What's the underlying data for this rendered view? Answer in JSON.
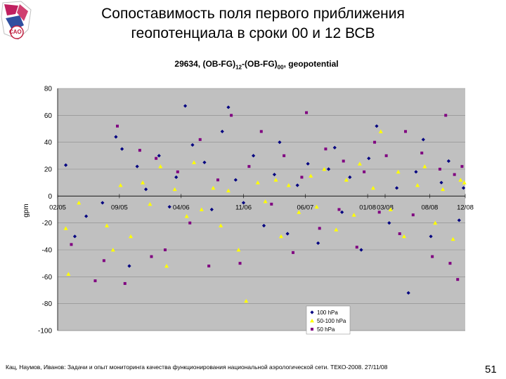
{
  "slide": {
    "title_line1": "Сопоставимость поля первого приближения",
    "title_line2": "геопотенциала в сроки 00 и 12 ВСВ",
    "logo_text": "CAO",
    "footer": "Кац, Наумов, Иванов: Задачи и опыт мониторинга качества функционирования национальной аэрологической сети. ТЕКО-2008. 27/11/08",
    "page_number": "51"
  },
  "colors": {
    "plot_bg": "#c0c0c0",
    "series_100": "#000080",
    "series_50_100": "#ffff00",
    "series_50": "#800080"
  },
  "chart_data": {
    "type": "scatter",
    "title_parts": [
      "29634, (OB-FG)",
      "12",
      "-(OB-FG)",
      "00",
      ", geopotential"
    ],
    "xlabel": "",
    "ylabel": "gpm",
    "ylim": [
      -100,
      80
    ],
    "yticks": [
      80,
      60,
      40,
      20,
      0,
      -20,
      -40,
      -60,
      -80,
      -100
    ],
    "xlim": [
      "2005-02-01",
      "2008-12-01"
    ],
    "xtick_labels": [
      "02/05",
      "09/05",
      "04/06",
      "11/06",
      "06/07",
      "01/08",
      "08/08",
      "03/08",
      "12/08"
    ],
    "xticks": [
      "2005-02-01",
      "2005-09-01",
      "2006-04-01",
      "2006-11-01",
      "2007-06-01",
      "2008-01-01",
      "2008-08-01",
      "2008-03-01",
      "2008-12-01"
    ],
    "grid": "horizontal",
    "legend_position": "bottom-right",
    "series": [
      {
        "name": "100 hPa",
        "marker": "diamond",
        "points": [
          [
            "2005-03-01",
            23
          ],
          [
            "2005-04-01",
            -30
          ],
          [
            "2005-05-10",
            -15
          ],
          [
            "2005-07-05",
            -5
          ],
          [
            "2005-08-20",
            44
          ],
          [
            "2005-09-10",
            35
          ],
          [
            "2005-10-05",
            -52
          ],
          [
            "2005-11-01",
            22
          ],
          [
            "2005-12-01",
            5
          ],
          [
            "2006-01-15",
            30
          ],
          [
            "2006-02-20",
            -8
          ],
          [
            "2006-03-15",
            14
          ],
          [
            "2006-04-15",
            67
          ],
          [
            "2006-05-10",
            38
          ],
          [
            "2006-06-20",
            25
          ],
          [
            "2006-07-15",
            -10
          ],
          [
            "2006-08-20",
            48
          ],
          [
            "2006-09-10",
            66
          ],
          [
            "2006-10-05",
            12
          ],
          [
            "2006-11-01",
            -5
          ],
          [
            "2006-12-05",
            30
          ],
          [
            "2007-01-10",
            -22
          ],
          [
            "2007-02-15",
            16
          ],
          [
            "2007-03-05",
            40
          ],
          [
            "2007-04-01",
            -28
          ],
          [
            "2007-05-05",
            8
          ],
          [
            "2007-06-10",
            24
          ],
          [
            "2007-07-15",
            -35
          ],
          [
            "2007-08-20",
            20
          ],
          [
            "2007-09-10",
            36
          ],
          [
            "2007-10-05",
            -12
          ],
          [
            "2007-11-01",
            14
          ],
          [
            "2007-12-10",
            -40
          ],
          [
            "2008-01-05",
            28
          ],
          [
            "2008-02-01",
            52
          ],
          [
            "2008-03-15",
            -20
          ],
          [
            "2008-04-10",
            6
          ],
          [
            "2008-05-20",
            -72
          ],
          [
            "2008-06-15",
            18
          ],
          [
            "2008-07-10",
            42
          ],
          [
            "2008-08-05",
            -30
          ],
          [
            "2008-09-10",
            10
          ],
          [
            "2008-10-05",
            26
          ],
          [
            "2008-11-10",
            -18
          ],
          [
            "2008-11-25",
            6
          ]
        ]
      },
      {
        "name": "50-100 hPa",
        "marker": "triangle",
        "points": [
          [
            "2005-03-01",
            -24
          ],
          [
            "2005-03-10",
            -58
          ],
          [
            "2005-04-15",
            -5
          ],
          [
            "2005-07-20",
            -22
          ],
          [
            "2005-08-10",
            -40
          ],
          [
            "2005-09-05",
            8
          ],
          [
            "2005-10-10",
            -30
          ],
          [
            "2005-11-20",
            10
          ],
          [
            "2005-12-15",
            -6
          ],
          [
            "2006-01-20",
            22
          ],
          [
            "2006-02-10",
            -52
          ],
          [
            "2006-03-10",
            5
          ],
          [
            "2006-04-20",
            -15
          ],
          [
            "2006-05-15",
            25
          ],
          [
            "2006-06-10",
            -10
          ],
          [
            "2006-07-20",
            6
          ],
          [
            "2006-08-15",
            -22
          ],
          [
            "2006-09-10",
            4
          ],
          [
            "2006-10-15",
            -40
          ],
          [
            "2006-11-10",
            -78
          ],
          [
            "2006-12-20",
            10
          ],
          [
            "2007-01-15",
            -4
          ],
          [
            "2007-02-20",
            12
          ],
          [
            "2007-03-10",
            -30
          ],
          [
            "2007-04-05",
            8
          ],
          [
            "2007-05-10",
            -12
          ],
          [
            "2007-06-20",
            15
          ],
          [
            "2007-07-10",
            -8
          ],
          [
            "2007-08-05",
            20
          ],
          [
            "2007-09-15",
            -25
          ],
          [
            "2007-10-20",
            12
          ],
          [
            "2007-11-15",
            -14
          ],
          [
            "2007-12-05",
            24
          ],
          [
            "2008-01-20",
            6
          ],
          [
            "2008-02-15",
            48
          ],
          [
            "2008-03-20",
            -10
          ],
          [
            "2008-04-15",
            18
          ],
          [
            "2008-05-05",
            -30
          ],
          [
            "2008-06-20",
            8
          ],
          [
            "2008-07-15",
            22
          ],
          [
            "2008-08-20",
            -20
          ],
          [
            "2008-09-15",
            5
          ],
          [
            "2008-10-20",
            -32
          ],
          [
            "2008-11-15",
            12
          ],
          [
            "2008-11-28",
            10
          ]
        ]
      },
      {
        "name": "50 hPa",
        "marker": "square",
        "points": [
          [
            "2005-03-20",
            -36
          ],
          [
            "2005-06-10",
            -63
          ],
          [
            "2005-07-10",
            -48
          ],
          [
            "2005-08-25",
            52
          ],
          [
            "2005-09-20",
            -65
          ],
          [
            "2005-11-10",
            34
          ],
          [
            "2005-12-20",
            -45
          ],
          [
            "2006-01-05",
            28
          ],
          [
            "2006-02-05",
            -40
          ],
          [
            "2006-03-20",
            18
          ],
          [
            "2006-05-01",
            -20
          ],
          [
            "2006-06-05",
            42
          ],
          [
            "2006-07-05",
            -52
          ],
          [
            "2006-08-05",
            12
          ],
          [
            "2006-09-20",
            60
          ],
          [
            "2006-10-20",
            -50
          ],
          [
            "2006-11-20",
            22
          ],
          [
            "2007-01-01",
            48
          ],
          [
            "2007-02-05",
            -6
          ],
          [
            "2007-03-20",
            30
          ],
          [
            "2007-04-20",
            -42
          ],
          [
            "2007-05-20",
            14
          ],
          [
            "2007-06-05",
            62
          ],
          [
            "2007-07-20",
            -24
          ],
          [
            "2007-08-10",
            35
          ],
          [
            "2007-09-25",
            -10
          ],
          [
            "2007-10-10",
            26
          ],
          [
            "2007-11-25",
            -38
          ],
          [
            "2007-12-20",
            18
          ],
          [
            "2008-01-25",
            40
          ],
          [
            "2008-02-10",
            -12
          ],
          [
            "2008-03-05",
            30
          ],
          [
            "2008-04-20",
            -28
          ],
          [
            "2008-05-10",
            48
          ],
          [
            "2008-06-05",
            -14
          ],
          [
            "2008-07-05",
            32
          ],
          [
            "2008-08-10",
            -45
          ],
          [
            "2008-09-05",
            20
          ],
          [
            "2008-09-25",
            60
          ],
          [
            "2008-10-10",
            -50
          ],
          [
            "2008-10-25",
            16
          ],
          [
            "2008-11-05",
            -62
          ],
          [
            "2008-11-20",
            22
          ]
        ]
      }
    ]
  }
}
